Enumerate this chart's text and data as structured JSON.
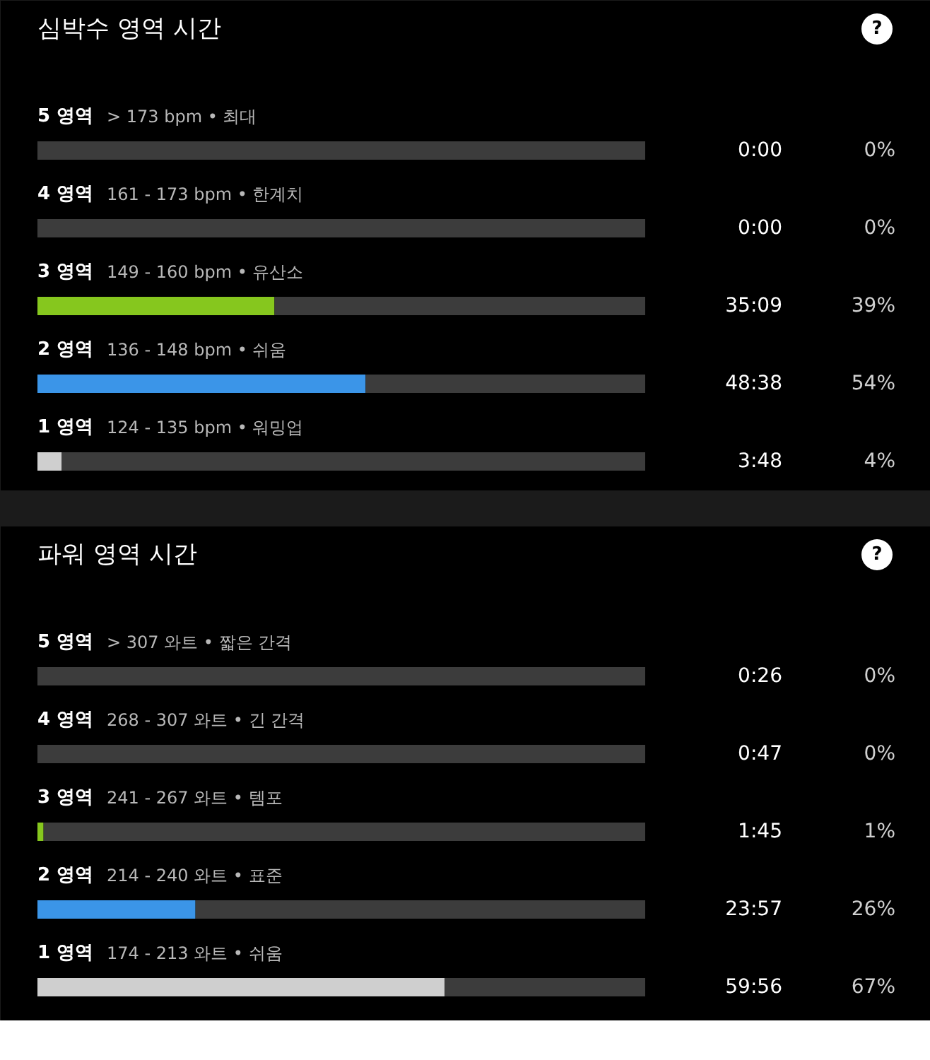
{
  "chart_data": [
    {
      "type": "bar",
      "orientation": "horizontal",
      "stacked": true,
      "title": "심박수 영역 시간",
      "xlim": [
        0,
        100
      ],
      "tick_labels": false,
      "grid": false,
      "categories": [
        "5 영역",
        "4 영역",
        "3 영역",
        "2 영역",
        "1 영역"
      ],
      "series": [
        {
          "colors": [
            "#c8401e",
            "#c8401e",
            "#86c71e",
            "#3b95e8",
            "#cfcfcf"
          ],
          "values": [
            0,
            0,
            39,
            54,
            4
          ],
          "value_labels": [
            "0%",
            "0%",
            "39%",
            "54%",
            "4%"
          ]
        },
        {
          "color": "#3c3c3c",
          "values": [
            100,
            100,
            61,
            46,
            96
          ]
        }
      ],
      "annotations": [
        "?",
        "> 173 bpm • 최대",
        "161 - 173 bpm • 한계치",
        "149 - 160 bpm • 유산소",
        "136 - 148 bpm • 쉬움",
        "124 - 135 bpm • 워밍업",
        "0:00",
        "0:00",
        "35:09",
        "48:38",
        "3:48"
      ]
    },
    {
      "type": "bar",
      "orientation": "horizontal",
      "stacked": true,
      "title": "파워 영역 시간",
      "xlim": [
        0,
        100
      ],
      "tick_labels": false,
      "grid": false,
      "categories": [
        "5 영역",
        "4 영역",
        "3 영역",
        "2 영역",
        "1 영역"
      ],
      "series": [
        {
          "colors": [
            "#c8401e",
            "#c8401e",
            "#86c71e",
            "#3b95e8",
            "#cfcfcf"
          ],
          "values": [
            0,
            0,
            1,
            26,
            67
          ],
          "value_labels": [
            "0%",
            "0%",
            "1%",
            "26%",
            "67%"
          ]
        },
        {
          "color": "#3c3c3c",
          "values": [
            100,
            100,
            99,
            74,
            33
          ]
        }
      ],
      "annotations": [
        "?",
        "> 307 와트 • 짧은 간격",
        "268 - 307 와트 • 긴 간격",
        "241 - 267 와트 • 템포",
        "214 - 240 와트 • 표준",
        "174 - 213 와트 • 쉬움",
        "0:26",
        "0:47",
        "1:45",
        "23:57",
        "59:56"
      ]
    }
  ]
}
